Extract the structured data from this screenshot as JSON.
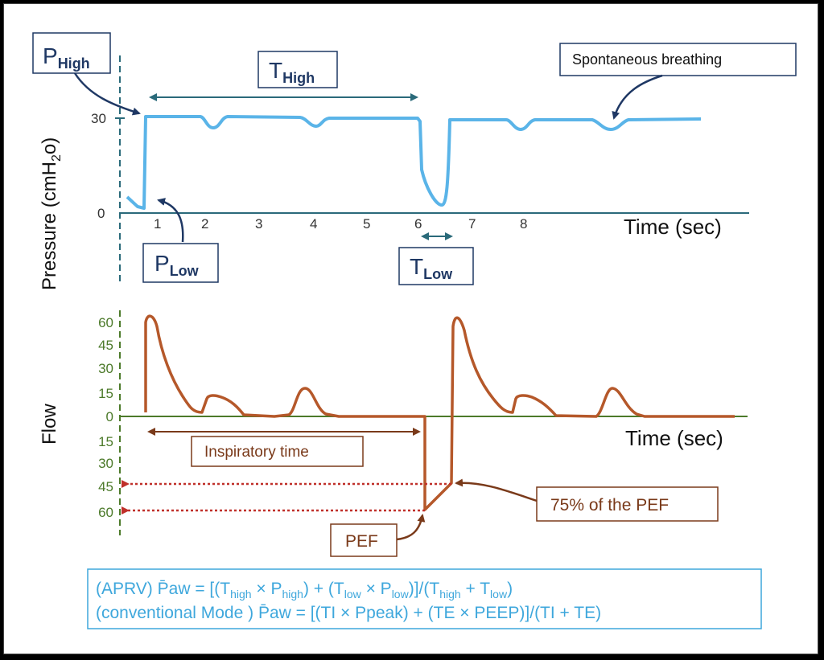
{
  "colors": {
    "pressure_line": "#5ab4e8",
    "flow_line": "#b5582a",
    "flow_axis": "#4c7a2a",
    "navy": "#1f3864",
    "teal": "#2a6a7a",
    "red_dotted": "#c0302a",
    "formula": "#3ea7dc"
  },
  "pressure": {
    "ylabel": "Pressure (cmH",
    "ylabel_sub": "2",
    "ylabel_tail": "o)",
    "xlabel": "Time (sec)",
    "yticks": [
      "30",
      "0"
    ],
    "xticks": [
      "1",
      "2",
      "3",
      "4",
      "5",
      "6",
      "7",
      "8"
    ],
    "p_high": {
      "main": "P",
      "sub": "High"
    },
    "p_low": {
      "main": "P",
      "sub": "Low"
    },
    "t_high": {
      "main": "T",
      "sub": "High"
    },
    "t_low": {
      "main": "T",
      "sub": "Low"
    },
    "spontaneous": "Spontaneous breathing"
  },
  "flow": {
    "ylabel": "Flow",
    "xlabel": "Time (sec)",
    "yticks_pos": [
      "60",
      "45",
      "30",
      "15",
      "0"
    ],
    "yticks_neg": [
      "15",
      "30",
      "45",
      "60"
    ],
    "inspiratory": "Inspiratory time",
    "pef_75": "75% of the PEF",
    "pef": "PEF"
  },
  "formula": {
    "line1": {
      "pre": "(APRV) P̄aw = [(T",
      "s1": "high",
      "t1": " × P",
      "s2": "high",
      "t2": ") + (T",
      "s3": "low",
      "t3": " × P",
      "s4": "low",
      "t4": ")]/(T",
      "s5": "high",
      "t5": " + T",
      "s6": "low",
      "t6": ")"
    },
    "line2": "(conventional Mode ) P̄aw = [(TI × Ppeak) + (TE × PEEP)]/(TI + TE)"
  }
}
